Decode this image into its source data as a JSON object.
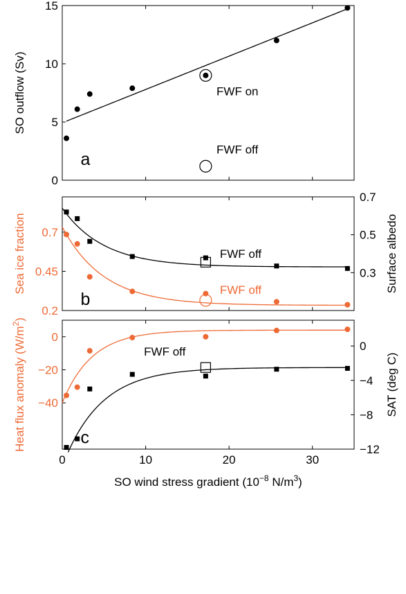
{
  "colors": {
    "black": "#000000",
    "orange": "#ee6a35"
  },
  "chart_data": [
    {
      "panel": "a",
      "type": "scatter",
      "ylabel": "SO outflow (Sv)",
      "xlim": [
        0,
        35
      ],
      "ylim": [
        0,
        15
      ],
      "yticks": [
        0,
        5,
        10,
        15
      ],
      "series": [
        {
          "color": "black",
          "marker": "dot",
          "x": [
            0.5,
            1.8,
            3.3,
            8.4,
            17.2,
            25.7,
            34.2
          ],
          "y": [
            3.6,
            6.1,
            7.4,
            7.9,
            9.0,
            12.0,
            14.8
          ]
        }
      ],
      "fit": {
        "color": "black",
        "type": "linear",
        "slope": 0.2862,
        "intercept": 4.93,
        "xrange": [
          0.5,
          34.2
        ]
      },
      "open_markers": [
        {
          "shape": "ring",
          "color": "black",
          "x": 17.2,
          "y": 9.0
        },
        {
          "shape": "circle",
          "color": "black",
          "x": 17.2,
          "y": 1.2
        }
      ],
      "annotations": [
        {
          "text": "FWF on",
          "x": 18.5,
          "y": 7.3
        },
        {
          "text": "FWF off",
          "x": 18.5,
          "y": 2.3
        },
        {
          "text": "a",
          "x": 2.2,
          "y": 1.3,
          "size": "large"
        }
      ]
    },
    {
      "panel": "b",
      "type": "scatter",
      "ylabel": "Sea ice fraction",
      "ylabel_color": "orange",
      "y2label": "Surface albedo",
      "xlim": [
        0,
        35
      ],
      "ylim": [
        0.2,
        0.925
      ],
      "yticks": [
        0.2,
        0.45,
        0.7
      ],
      "ytick_labels": [
        "0.2",
        "0.45",
        "0.7"
      ],
      "y2lim": [
        0.1,
        0.7
      ],
      "y2ticks": [
        0.3,
        0.5,
        0.7
      ],
      "series": [
        {
          "color": "orange",
          "marker": "dot",
          "axis": "left",
          "x": [
            0.5,
            1.8,
            3.3,
            8.4,
            17.2,
            25.7,
            34.2
          ],
          "y": [
            0.685,
            0.625,
            0.415,
            0.322,
            0.308,
            0.256,
            0.237
          ]
        },
        {
          "color": "black",
          "marker": "square",
          "axis": "right",
          "x": [
            0.5,
            1.8,
            3.3,
            8.4,
            17.2,
            25.7,
            34.2
          ],
          "y": [
            0.62,
            0.585,
            0.465,
            0.385,
            0.378,
            0.335,
            0.322
          ]
        }
      ],
      "fits": [
        {
          "color": "orange",
          "axis": "left",
          "type": "exp",
          "a": 0.233,
          "b": 0.5,
          "k": 0.2,
          "xrange": [
            0,
            34.2
          ]
        },
        {
          "color": "black",
          "axis": "right",
          "type": "exp",
          "a": 0.33,
          "b": 0.31,
          "k": 0.2,
          "xrange": [
            0,
            34.2
          ]
        }
      ],
      "open_markers": [
        {
          "shape": "square",
          "color": "black",
          "axis": "right",
          "x": 17.2,
          "y": 0.355
        },
        {
          "shape": "circle",
          "color": "orange",
          "axis": "left",
          "x": 17.2,
          "y": 0.265
        }
      ],
      "annotations": [
        {
          "text": "FWF off",
          "x": 18.9,
          "y": 0.536,
          "color": "black"
        },
        {
          "text": "FWF off",
          "x": 18.9,
          "y": 0.305,
          "color": "orange"
        },
        {
          "text": "b",
          "x": 2.2,
          "y": 0.235,
          "size": "large"
        }
      ]
    },
    {
      "panel": "c",
      "type": "scatter",
      "xlabel": "SO wind stress gradient (10",
      "xlabel_sup": "−8",
      "xlabel_end": " N/m",
      "xlabel_sup2": "3",
      "xlabel_close": ")",
      "xticks": [
        0,
        10,
        20,
        30
      ],
      "ylabel": "Heat flux anomaly (W/m",
      "ylabel_sup": "2",
      "ylabel_close": ")",
      "ylabel_color": "orange",
      "y2label": "SAT (deg C)",
      "xlim": [
        0,
        35
      ],
      "ylim": [
        -68,
        10
      ],
      "yticks": [
        -40,
        -20,
        0
      ],
      "y2lim": [
        -12,
        3
      ],
      "y2ticks": [
        -12,
        -8,
        -4,
        0
      ],
      "series": [
        {
          "color": "orange",
          "marker": "dot",
          "axis": "left",
          "x": [
            0.5,
            1.8,
            3.3,
            8.4,
            17.2,
            25.7,
            34.2
          ],
          "y": [
            -35.5,
            -30.5,
            -8.5,
            -0.5,
            0,
            3.8,
            4.5
          ]
        },
        {
          "color": "black",
          "marker": "square",
          "axis": "right",
          "x": [
            0.5,
            1.8,
            3.3,
            8.4,
            17.2,
            25.7,
            34.2
          ],
          "y": [
            -11.8,
            -10.8,
            -5.0,
            -3.3,
            -3.5,
            -2.7,
            -2.6
          ]
        }
      ],
      "fits": [
        {
          "color": "orange",
          "axis": "left",
          "type": "exp",
          "a": 4.0,
          "b": -44.0,
          "k": 0.28,
          "xrange": [
            0,
            34.2
          ]
        },
        {
          "color": "black",
          "axis": "right",
          "type": "exp",
          "a": -2.5,
          "b": -11.5,
          "k": 0.22,
          "xrange": [
            0.7,
            34.2
          ]
        }
      ],
      "open_markers": [
        {
          "shape": "square",
          "color": "black",
          "axis": "right",
          "x": 17.2,
          "y": -2.5
        }
      ],
      "annotations": [
        {
          "text": "FWF off",
          "x": 9.8,
          "y": -1.1,
          "color": "black",
          "axis": "right"
        },
        {
          "text": "c",
          "x": 2.2,
          "y": -11.3,
          "size": "large",
          "axis": "right"
        }
      ]
    }
  ]
}
